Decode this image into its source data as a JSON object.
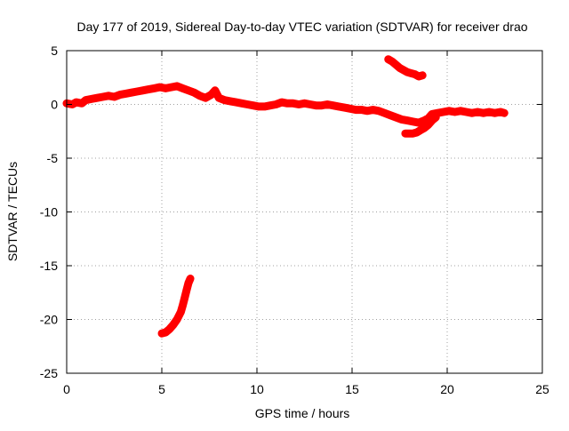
{
  "chart_data": {
    "type": "scatter",
    "title": "Day 177 of 2019, Sidereal Day-to-day VTEC variation (SDTVAR) for receiver drao",
    "xlabel": "GPS time / hours",
    "ylabel": "SDTVAR / TECUs",
    "xlim": [
      0,
      25
    ],
    "ylim": [
      -25,
      5
    ],
    "xticks": [
      0,
      5,
      10,
      15,
      20,
      25
    ],
    "yticks": [
      5,
      0,
      -5,
      -10,
      -15,
      -20,
      -25
    ],
    "grid": true,
    "series": [
      {
        "name": "main-track",
        "color": "#ff0000",
        "points": [
          [
            0.0,
            0.1
          ],
          [
            0.3,
            0.0
          ],
          [
            0.5,
            0.2
          ],
          [
            0.8,
            0.1
          ],
          [
            1.0,
            0.4
          ],
          [
            1.3,
            0.5
          ],
          [
            1.6,
            0.6
          ],
          [
            1.9,
            0.7
          ],
          [
            2.2,
            0.8
          ],
          [
            2.5,
            0.7
          ],
          [
            2.8,
            0.9
          ],
          [
            3.1,
            1.0
          ],
          [
            3.4,
            1.1
          ],
          [
            3.7,
            1.2
          ],
          [
            4.0,
            1.3
          ],
          [
            4.3,
            1.4
          ],
          [
            4.6,
            1.5
          ],
          [
            4.9,
            1.6
          ],
          [
            5.2,
            1.5
          ],
          [
            5.5,
            1.6
          ],
          [
            5.8,
            1.7
          ],
          [
            6.1,
            1.5
          ],
          [
            6.4,
            1.3
          ],
          [
            6.7,
            1.1
          ],
          [
            7.0,
            0.8
          ],
          [
            7.3,
            0.6
          ],
          [
            7.6,
            0.9
          ],
          [
            7.8,
            1.3
          ],
          [
            8.0,
            0.6
          ],
          [
            8.3,
            0.4
          ],
          [
            8.6,
            0.3
          ],
          [
            8.9,
            0.2
          ],
          [
            9.2,
            0.1
          ],
          [
            9.5,
            0.0
          ],
          [
            9.8,
            -0.1
          ],
          [
            10.1,
            -0.2
          ],
          [
            10.4,
            -0.2
          ],
          [
            10.7,
            -0.1
          ],
          [
            11.0,
            0.0
          ],
          [
            11.3,
            0.2
          ],
          [
            11.6,
            0.1
          ],
          [
            11.9,
            0.1
          ],
          [
            12.2,
            0.0
          ],
          [
            12.5,
            0.1
          ],
          [
            12.8,
            0.0
          ],
          [
            13.1,
            -0.1
          ],
          [
            13.4,
            -0.1
          ],
          [
            13.7,
            0.0
          ],
          [
            14.0,
            -0.1
          ],
          [
            14.3,
            -0.2
          ],
          [
            14.6,
            -0.3
          ],
          [
            14.9,
            -0.4
          ],
          [
            15.2,
            -0.5
          ],
          [
            15.5,
            -0.5
          ],
          [
            15.8,
            -0.6
          ],
          [
            16.1,
            -0.5
          ],
          [
            16.4,
            -0.6
          ],
          [
            16.7,
            -0.8
          ],
          [
            17.0,
            -1.0
          ],
          [
            17.3,
            -1.2
          ],
          [
            17.6,
            -1.4
          ],
          [
            17.9,
            -1.5
          ],
          [
            18.2,
            -1.6
          ],
          [
            18.5,
            -1.7
          ],
          [
            18.8,
            -1.5
          ],
          [
            19.0,
            -1.3
          ],
          [
            19.2,
            -0.9
          ],
          [
            19.5,
            -0.8
          ],
          [
            19.8,
            -0.7
          ],
          [
            20.1,
            -0.6
          ],
          [
            20.4,
            -0.7
          ],
          [
            20.7,
            -0.6
          ],
          [
            21.0,
            -0.7
          ],
          [
            21.3,
            -0.8
          ],
          [
            21.6,
            -0.7
          ],
          [
            21.9,
            -0.8
          ],
          [
            22.2,
            -0.7
          ],
          [
            22.5,
            -0.8
          ],
          [
            22.8,
            -0.7
          ],
          [
            23.0,
            -0.8
          ]
        ]
      },
      {
        "name": "branch-high",
        "color": "#ff0000",
        "points": [
          [
            16.9,
            4.2
          ],
          [
            17.1,
            4.0
          ],
          [
            17.3,
            3.7
          ],
          [
            17.5,
            3.4
          ],
          [
            17.7,
            3.2
          ],
          [
            17.9,
            3.0
          ],
          [
            18.1,
            2.9
          ],
          [
            18.3,
            2.8
          ],
          [
            18.5,
            2.6
          ],
          [
            18.7,
            2.7
          ]
        ]
      },
      {
        "name": "branch-low",
        "color": "#ff0000",
        "points": [
          [
            17.8,
            -2.7
          ],
          [
            18.0,
            -2.7
          ],
          [
            18.2,
            -2.7
          ],
          [
            18.4,
            -2.6
          ],
          [
            18.6,
            -2.4
          ],
          [
            18.8,
            -2.2
          ],
          [
            19.0,
            -1.9
          ],
          [
            19.2,
            -1.5
          ],
          [
            19.4,
            -1.2
          ]
        ]
      },
      {
        "name": "branch-bottom",
        "color": "#ff0000",
        "points": [
          [
            5.0,
            -21.3
          ],
          [
            5.2,
            -21.2
          ],
          [
            5.4,
            -20.9
          ],
          [
            5.6,
            -20.5
          ],
          [
            5.8,
            -20.0
          ],
          [
            6.0,
            -19.3
          ],
          [
            6.1,
            -18.7
          ],
          [
            6.2,
            -18.0
          ],
          [
            6.3,
            -17.3
          ],
          [
            6.4,
            -16.6
          ],
          [
            6.5,
            -16.2
          ]
        ]
      }
    ]
  }
}
